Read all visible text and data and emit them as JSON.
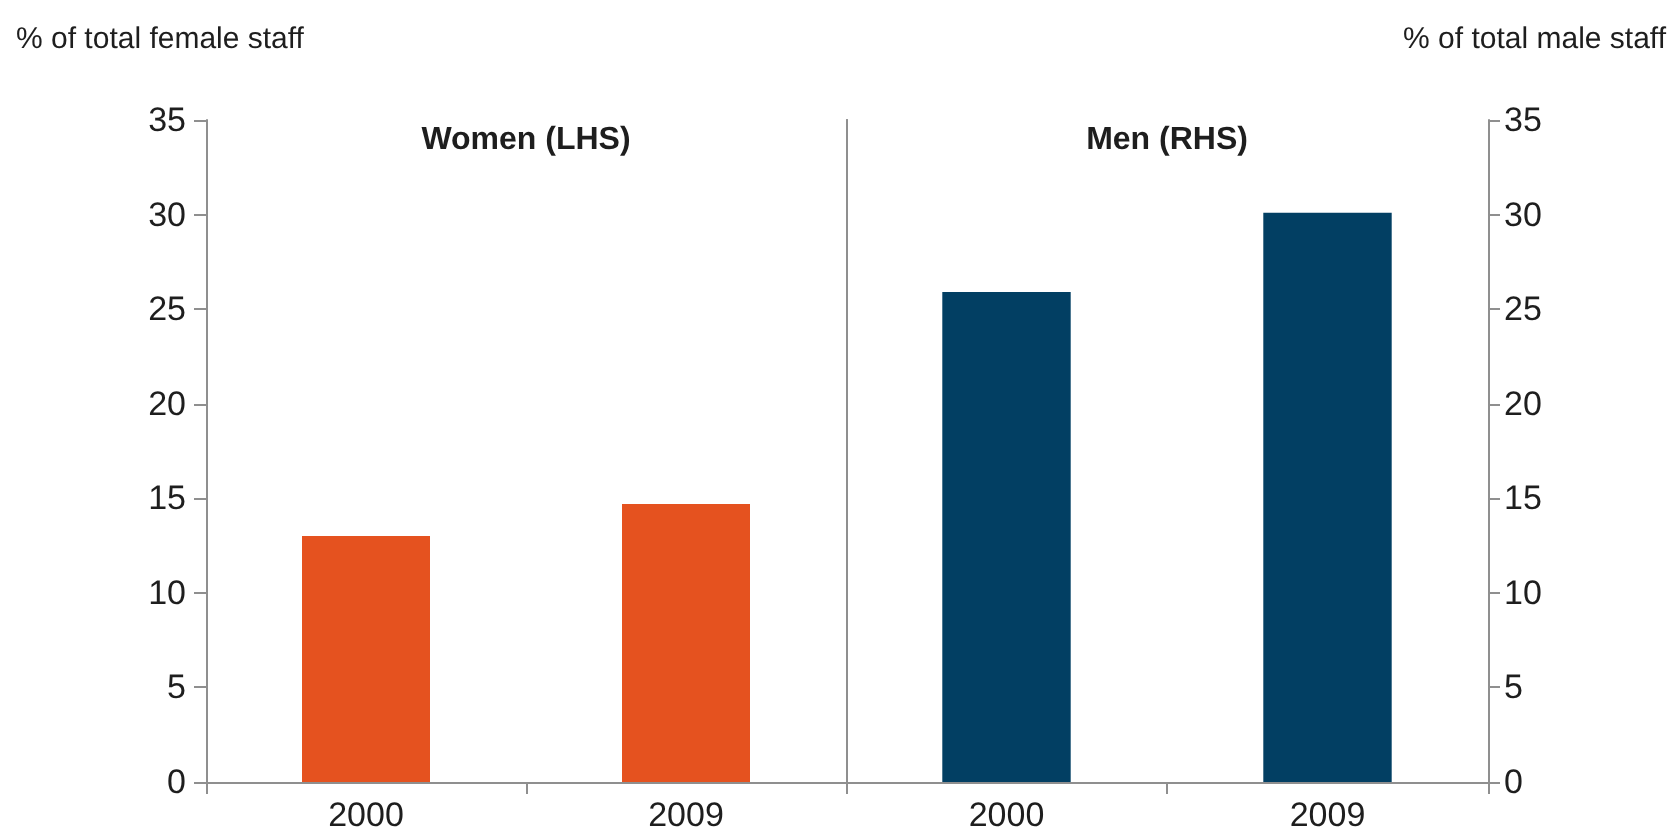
{
  "chart_data": [
    {
      "type": "bar",
      "categories": [
        "2000",
        "2009"
      ],
      "series": [
        {
          "name": "Women (LHS)",
          "color": "#e5521f",
          "values": [
            13,
            14.7
          ]
        }
      ],
      "ylabel": "% of total female staff",
      "ylim": [
        0,
        35
      ],
      "yticks": [
        0,
        5,
        10,
        15,
        20,
        25,
        30,
        35
      ]
    },
    {
      "type": "bar",
      "categories": [
        "2000",
        "2009"
      ],
      "series": [
        {
          "name": "Men (RHS)",
          "color": "#023f63",
          "axis": "y2",
          "values": [
            25.9,
            30.1
          ]
        }
      ],
      "y2label": "% of total male staff",
      "y2lim": [
        0,
        35
      ],
      "y2ticks": [
        0,
        5,
        10,
        15,
        20,
        25,
        30,
        35
      ]
    }
  ]
}
